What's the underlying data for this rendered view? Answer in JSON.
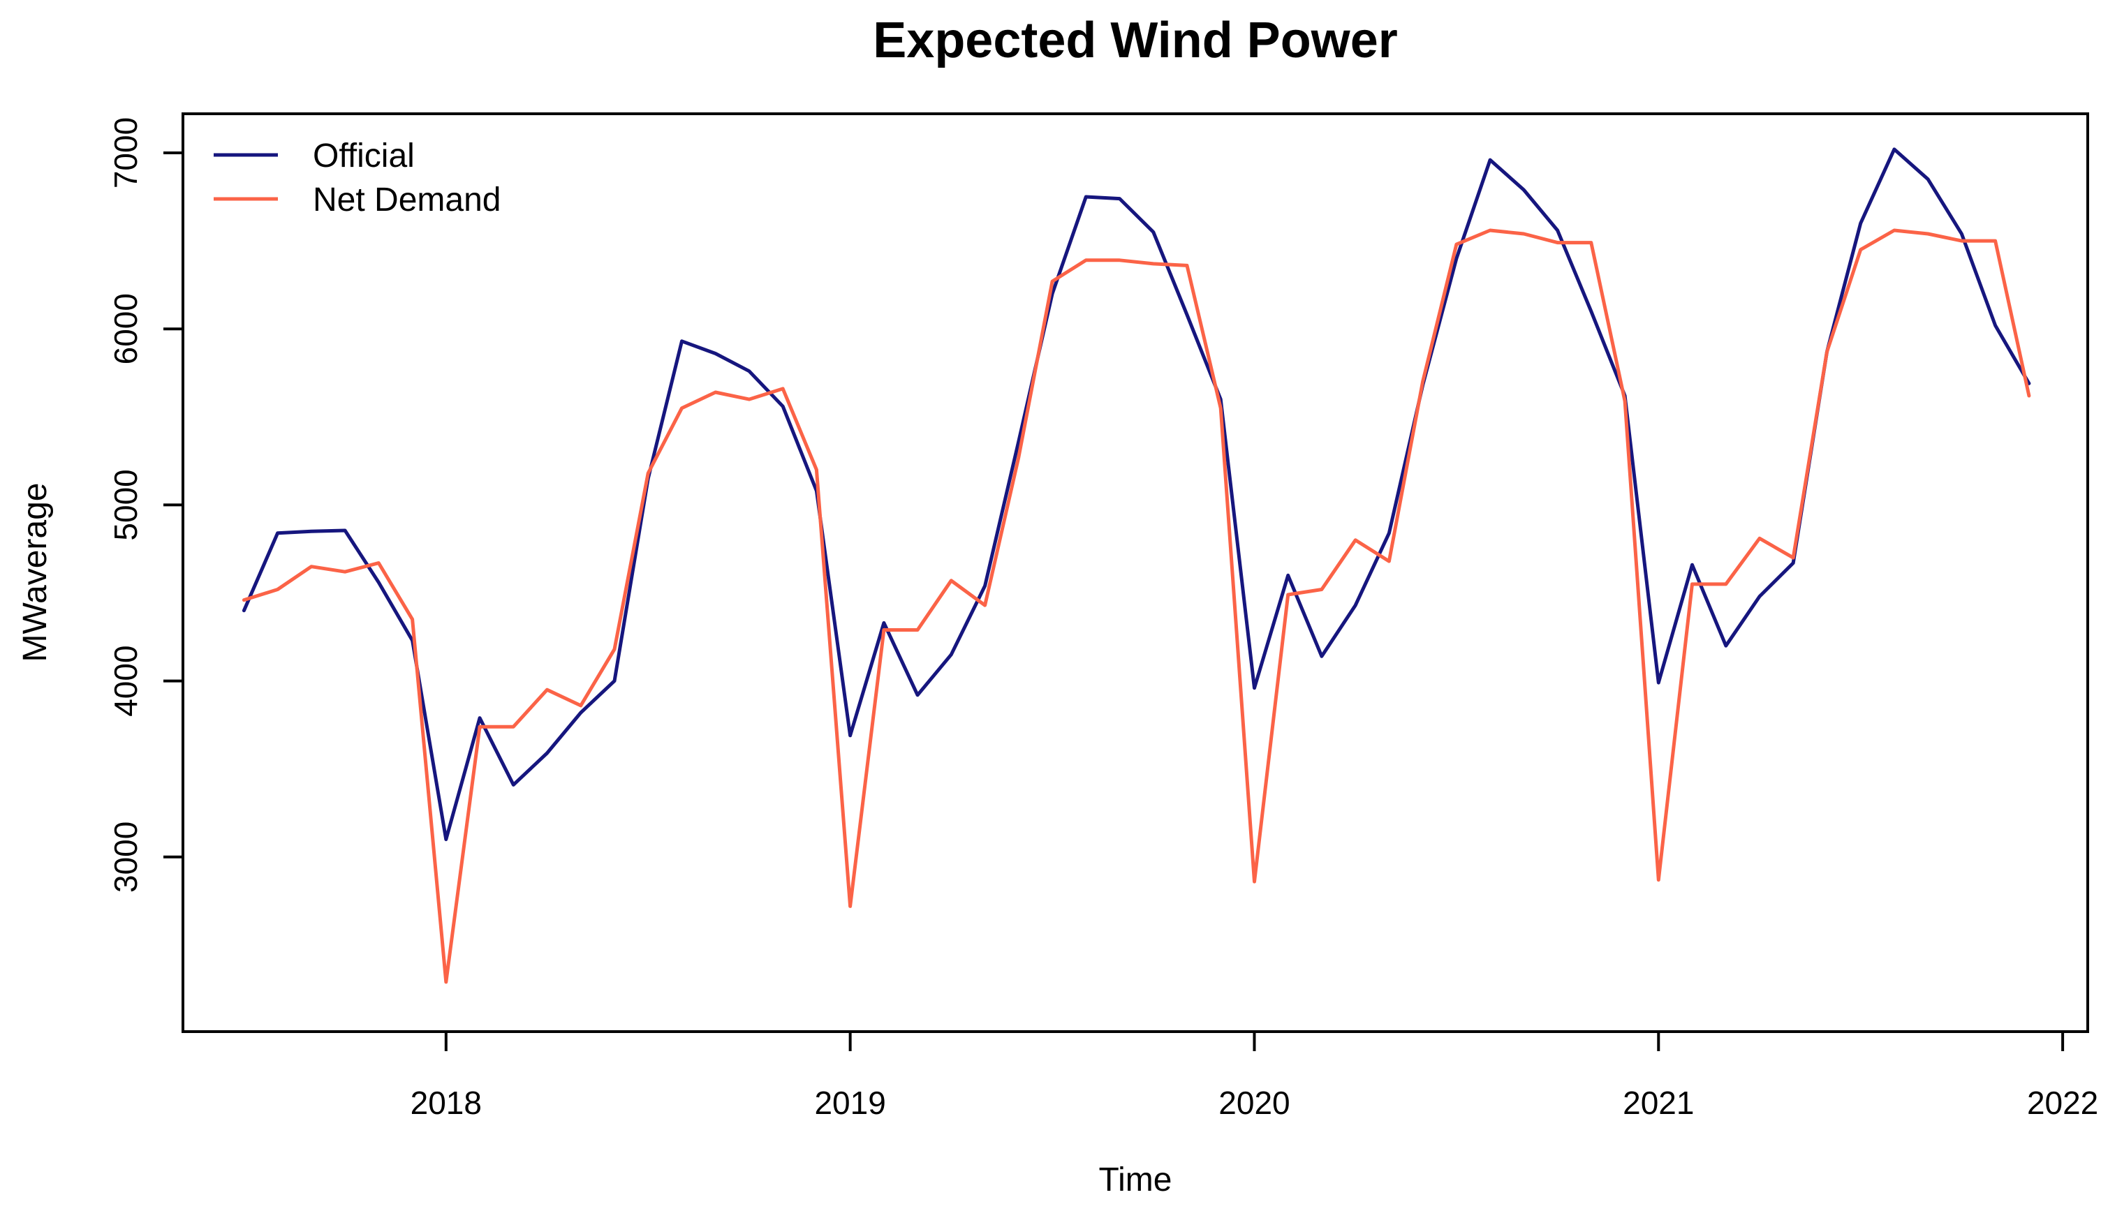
{
  "chart_data": {
    "type": "line",
    "title": "Expected Wind Power",
    "xlabel": "Time",
    "ylabel": "MWaverage",
    "x_ticks": [
      2018,
      2019,
      2020,
      2021,
      2022
    ],
    "y_ticks": [
      3000,
      4000,
      5000,
      6000,
      7000
    ],
    "xlim": [
      2017.349,
      2022.062
    ],
    "ylim": [
      2008,
      7222
    ],
    "x_start": 2017.5,
    "x_step_years": 0.08333333,
    "grid": false,
    "legend_position": "top-left",
    "months": [
      "Jul 2017 through Dec 2021, monthly"
    ],
    "series": [
      {
        "name": "Official",
        "color": "#16167E",
        "values": [
          4400,
          4840,
          4850,
          4855,
          4560,
          4230,
          3100,
          3790,
          3410,
          3590,
          3820,
          4000,
          5150,
          5930,
          5860,
          5760,
          5560,
          5080,
          3690,
          4330,
          3920,
          4150,
          4540,
          5360,
          6200,
          6750,
          6740,
          6550,
          6080,
          5600,
          3960,
          4600,
          4140,
          4430,
          4840,
          5680,
          6400,
          6960,
          6790,
          6560,
          6100,
          5620,
          3990,
          4660,
          4200,
          4480,
          4670,
          5870,
          6600,
          7020,
          6850,
          6540,
          6020,
          5690
        ]
      },
      {
        "name": "Net Demand",
        "color": "#FB6347",
        "values": [
          4460,
          4520,
          4650,
          4620,
          4670,
          4350,
          2290,
          3740,
          3740,
          3950,
          3860,
          4180,
          5180,
          5550,
          5640,
          5600,
          5660,
          5200,
          2720,
          4290,
          4290,
          4570,
          4430,
          5270,
          6270,
          6390,
          6390,
          6370,
          6360,
          5550,
          2860,
          4490,
          4520,
          4800,
          4680,
          5700,
          6480,
          6560,
          6540,
          6490,
          6490,
          5590,
          2870,
          4550,
          4550,
          4810,
          4700,
          5870,
          6450,
          6560,
          6540,
          6500,
          6500,
          5620
        ]
      }
    ]
  },
  "colors": {
    "background": "#FFFFFF",
    "axis": "#000000",
    "text": "#000000"
  }
}
